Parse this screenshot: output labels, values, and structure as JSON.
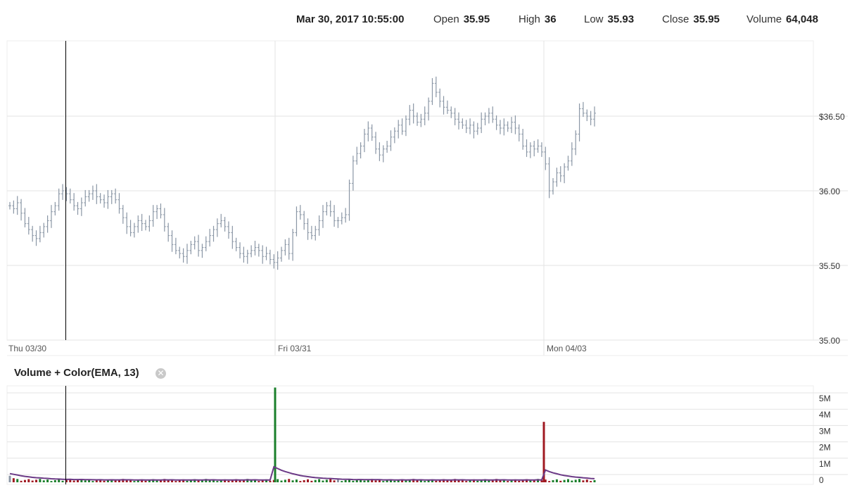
{
  "header": {
    "datetime": "Mar 30, 2017 10:55:00",
    "open_label": "Open",
    "open_value": "35.95",
    "high_label": "High",
    "high_value": "36",
    "low_label": "Low",
    "low_value": "35.93",
    "close_label": "Close",
    "close_value": "35.95",
    "volume_label": "Volume",
    "volume_value": "64,048"
  },
  "volume_panel": {
    "title": "Volume + Color(EMA, 13)",
    "close_icon": "close-circle-icon"
  },
  "colors": {
    "price_bars": "#8a96a5",
    "volume_up": "#1a7f2b",
    "volume_down": "#a01a22",
    "volume_neutral": "#8a96a5",
    "ema_line": "#6b3a86",
    "grid": "#e3e3e3"
  },
  "chart_data": [
    {
      "type": "ohlc",
      "price_axis": {
        "ticks": [
          35.0,
          35.5,
          36.0,
          36.5
        ],
        "tick_labels": [
          "35.00",
          "35.50",
          "36.00",
          "$36.50"
        ],
        "ylim": [
          35.0,
          36.9
        ]
      },
      "x_labels": [
        "Thu 03/30",
        "Fri 03/31",
        "Mon 04/03"
      ],
      "crosshair_label": "Mar 30, 2017 10:55:00",
      "closes": [
        35.9,
        35.88,
        35.92,
        35.85,
        35.78,
        35.74,
        35.7,
        35.68,
        35.72,
        35.76,
        35.8,
        35.86,
        35.9,
        35.98,
        36.0,
        35.98,
        35.94,
        35.9,
        35.88,
        35.92,
        35.96,
        35.98,
        36.0,
        35.96,
        35.94,
        35.92,
        35.96,
        35.98,
        35.94,
        35.88,
        35.82,
        35.76,
        35.72,
        35.76,
        35.8,
        35.78,
        35.76,
        35.8,
        35.86,
        35.88,
        35.84,
        35.76,
        35.7,
        35.64,
        35.6,
        35.58,
        35.56,
        35.6,
        35.64,
        35.66,
        35.6,
        35.62,
        35.66,
        35.7,
        35.74,
        35.78,
        35.8,
        35.76,
        35.72,
        35.66,
        35.62,
        35.58,
        35.56,
        35.58,
        35.6,
        35.62,
        35.6,
        35.56,
        35.58,
        35.54,
        35.52,
        35.55,
        35.6,
        35.64,
        35.58,
        35.72,
        35.86,
        35.84,
        35.78,
        35.72,
        35.7,
        35.74,
        35.8,
        35.86,
        35.9,
        35.86,
        35.8,
        35.8,
        35.82,
        35.84,
        36.05,
        36.2,
        36.25,
        36.3,
        36.38,
        36.42,
        36.36,
        36.28,
        36.24,
        36.28,
        36.3,
        36.36,
        36.4,
        36.44,
        36.4,
        36.48,
        36.54,
        36.5,
        36.46,
        36.48,
        36.52,
        36.6,
        36.72,
        36.66,
        36.6,
        36.56,
        36.54,
        36.52,
        36.48,
        36.46,
        36.44,
        36.42,
        36.44,
        36.4,
        36.42,
        36.48,
        36.5,
        36.52,
        36.48,
        36.44,
        36.42,
        36.44,
        36.42,
        36.46,
        36.42,
        36.38,
        36.3,
        36.26,
        36.3,
        36.28,
        36.3,
        36.26,
        36.18,
        36.0,
        36.06,
        36.12,
        36.1,
        36.16,
        36.2,
        36.28,
        36.38,
        36.55,
        36.52,
        36.5,
        36.48,
        36.52
      ],
      "volume_axis": {
        "ticks": [
          0,
          1,
          2,
          3,
          4,
          5
        ],
        "tick_labels": [
          "0",
          "1M",
          "2M",
          "3M",
          "4M",
          "5M"
        ],
        "unit": "M",
        "ylim": [
          0,
          5.8
        ]
      },
      "volume_spikes": [
        {
          "label": "Fri 03/31",
          "value": 5.8,
          "color": "up"
        },
        {
          "label": "Mon 04/03",
          "value": 3.7,
          "color": "down"
        }
      ]
    }
  ]
}
